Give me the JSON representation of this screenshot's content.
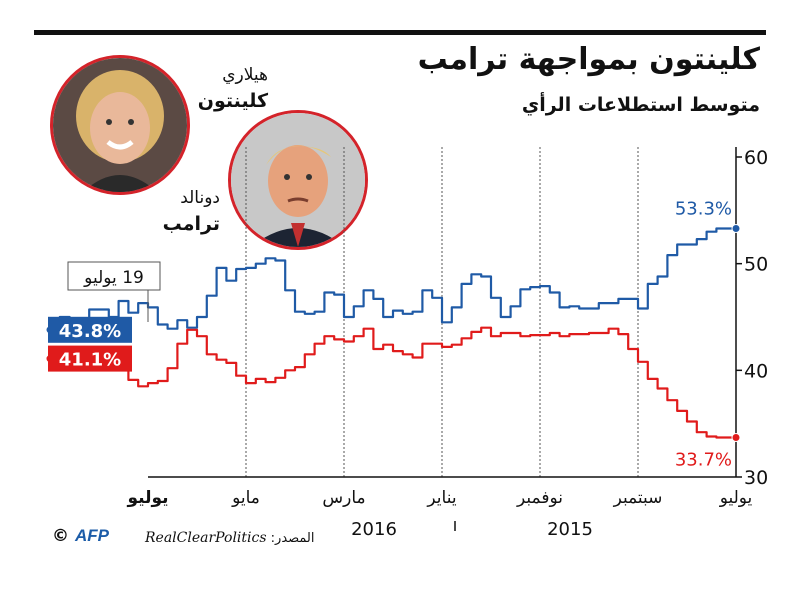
{
  "header": {
    "title": "كلينتون بمواجهة ترامب",
    "subtitle": "متوسط استطلاعات الرأي"
  },
  "people": {
    "clinton": {
      "first": "هيلاري",
      "last": "كلينتون"
    },
    "trump": {
      "first": "دونالد",
      "last": "ترامب"
    }
  },
  "footer": {
    "source_label": "المصدر: ",
    "source": "RealClearPolitics",
    "agency": "AFP",
    "copyright": "©"
  },
  "chart_data": {
    "type": "line",
    "title": "كلينتون بمواجهة ترامب",
    "subtitle": "متوسط استطلاعات الرأي",
    "x_axis_direction": "right-to-left",
    "ylim": [
      30,
      60
    ],
    "yticks": [
      "30",
      "40",
      "50",
      "60"
    ],
    "x_tick_labels": [
      "يوليو",
      "سبتمبر",
      "نوفمبر",
      "يناير",
      "مارس",
      "مايو",
      "يوليو"
    ],
    "year_labels": [
      "2015",
      "2016"
    ],
    "annotation": "19 يوليو",
    "grid": true,
    "colors": {
      "clinton": "#1f5aa6",
      "trump": "#e01b1b"
    },
    "series": [
      {
        "name": "كلينتون",
        "color": "#1f5aa6",
        "start_label": "53.3%",
        "end_label": "43.8%",
        "x": [
          0,
          0.1,
          0.2,
          0.3,
          0.4,
          0.5,
          0.6,
          0.7,
          0.8,
          0.9,
          1.0,
          1.1,
          1.2,
          1.3,
          1.4,
          1.5,
          1.6,
          1.7,
          1.8,
          1.9,
          2.0,
          2.1,
          2.2,
          2.3,
          2.4,
          2.5,
          2.6,
          2.7,
          2.8,
          2.9,
          3.0,
          3.1,
          3.2,
          3.3,
          3.4,
          3.5,
          3.6,
          3.7,
          3.8,
          3.9,
          4.0,
          4.1,
          4.2,
          4.3,
          4.4,
          4.5,
          4.6,
          4.7,
          4.8,
          4.9,
          5.0,
          5.1,
          5.2,
          5.3,
          5.4,
          5.5,
          5.6,
          5.7,
          5.8,
          5.9,
          6.0,
          6.1,
          6.2,
          6.3,
          6.4,
          6.6,
          6.8,
          6.9,
          7.0
        ],
        "values": [
          53.3,
          53.3,
          53.0,
          52.3,
          51.8,
          51.8,
          50.8,
          48.8,
          48.1,
          45.8,
          46.7,
          46.7,
          46.3,
          46.3,
          45.8,
          45.8,
          46.0,
          45.9,
          47.3,
          47.9,
          47.8,
          47.6,
          46.0,
          45.0,
          46.8,
          48.8,
          49.0,
          48.1,
          45.9,
          44.5,
          46.8,
          47.5,
          45.5,
          45.3,
          45.6,
          45.0,
          46.7,
          47.5,
          46.0,
          45.0,
          47.1,
          47.3,
          45.5,
          45.3,
          45.5,
          47.5,
          50.3,
          50.5,
          50.0,
          49.6,
          49.5,
          48.4,
          49.6,
          47.0,
          45.0,
          44.0,
          44.7,
          43.9,
          44.3,
          45.9,
          46.3,
          45.4,
          46.5,
          45.0,
          45.7,
          44.5,
          45.0,
          43.9,
          43.8
        ]
      },
      {
        "name": "ترامب",
        "color": "#e01b1b",
        "start_label": "33.7%",
        "end_label": "41.1%",
        "x": [
          0,
          0.1,
          0.2,
          0.3,
          0.4,
          0.5,
          0.6,
          0.7,
          0.8,
          0.9,
          1.0,
          1.1,
          1.2,
          1.3,
          1.4,
          1.5,
          1.6,
          1.7,
          1.8,
          1.9,
          2.0,
          2.1,
          2.2,
          2.3,
          2.4,
          2.5,
          2.6,
          2.7,
          2.8,
          2.9,
          3.0,
          3.1,
          3.2,
          3.3,
          3.4,
          3.5,
          3.6,
          3.7,
          3.8,
          3.9,
          4.0,
          4.1,
          4.2,
          4.3,
          4.4,
          4.5,
          4.6,
          4.7,
          4.8,
          4.9,
          5.0,
          5.1,
          5.2,
          5.3,
          5.4,
          5.5,
          5.6,
          5.7,
          5.8,
          5.9,
          6.0,
          6.1,
          6.2,
          6.3,
          6.4,
          6.5,
          6.6,
          6.7,
          6.8,
          7.0
        ],
        "values": [
          33.7,
          33.7,
          33.8,
          34.2,
          35.2,
          36.2,
          37.2,
          38.3,
          39.2,
          40.8,
          42.0,
          43.4,
          43.9,
          43.5,
          43.5,
          43.4,
          43.4,
          43.2,
          43.5,
          43.3,
          43.3,
          43.2,
          43.5,
          43.5,
          43.2,
          44.0,
          43.6,
          43.0,
          42.4,
          42.2,
          42.5,
          42.5,
          41.2,
          41.5,
          41.8,
          42.4,
          42.0,
          43.9,
          43.2,
          42.7,
          42.9,
          43.2,
          42.5,
          41.5,
          40.3,
          40.0,
          39.3,
          38.9,
          39.2,
          38.8,
          39.5,
          40.7,
          41.0,
          41.5,
          43.2,
          43.8,
          42.5,
          40.2,
          39.0,
          38.8,
          38.5,
          39.1,
          40.3,
          40.2,
          40.4,
          40.1,
          40.8,
          41.0,
          41.3,
          41.1
        ]
      }
    ]
  }
}
